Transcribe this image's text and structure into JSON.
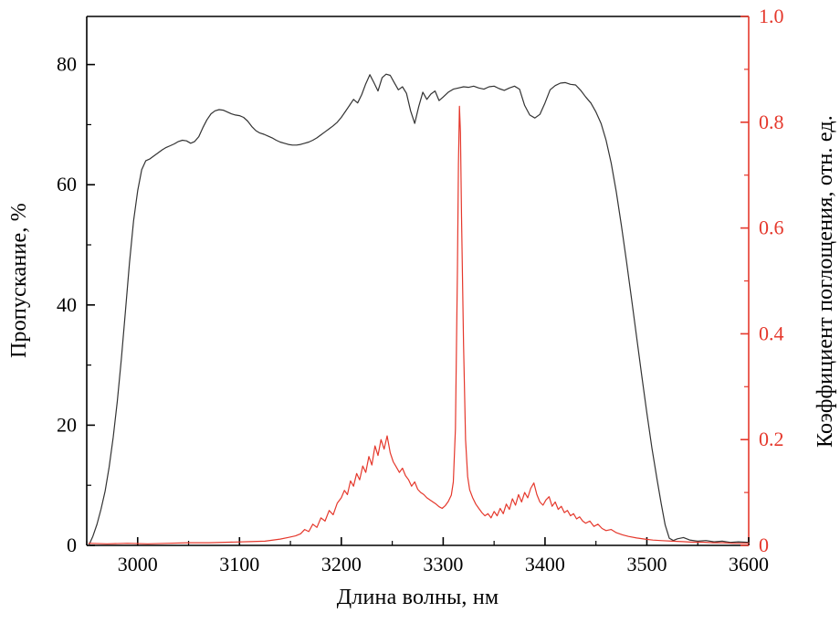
{
  "chart_data": {
    "type": "line",
    "title": "",
    "xlabel": "Длина волны, нм",
    "ylabel_left": "Пропускание, %",
    "ylabel_right": "Коэффициент поглощения, отн. ед.",
    "xlim": [
      2950,
      3600
    ],
    "ylim_left": [
      0,
      88
    ],
    "ylim_right": [
      0,
      1.0
    ],
    "grid": false,
    "legend": "none",
    "x_ticks": [
      3000,
      3100,
      3200,
      3300,
      3400,
      3500,
      3600
    ],
    "x_tick_labels": [
      "3000",
      "3100",
      "3200",
      "3300",
      "3400",
      "3500",
      "3600"
    ],
    "y_ticks_left": [
      0,
      20,
      40,
      60,
      80
    ],
    "y_tick_labels_left": [
      "0",
      "20",
      "40",
      "60",
      "80"
    ],
    "y_ticks_right": [
      0,
      0.2,
      0.4,
      0.6,
      0.8,
      1.0
    ],
    "y_tick_labels_right": [
      "0",
      "0.2",
      "0.4",
      "0.6",
      "0.8",
      "1.0"
    ],
    "colors": {
      "frame": "#000000",
      "left_series": "#333333",
      "right_series": "#e5382c",
      "right_axis": "#e5382c",
      "right_tick_text": "#e5382c"
    },
    "series": [
      {
        "name": "transmission",
        "axis": "left",
        "points": [
          [
            2952,
            0
          ],
          [
            2956,
            1.5
          ],
          [
            2960,
            3.5
          ],
          [
            2964,
            6
          ],
          [
            2968,
            9
          ],
          [
            2972,
            13
          ],
          [
            2976,
            18
          ],
          [
            2980,
            24
          ],
          [
            2984,
            31
          ],
          [
            2988,
            39
          ],
          [
            2992,
            47
          ],
          [
            2996,
            54
          ],
          [
            3000,
            59
          ],
          [
            3004,
            62.5
          ],
          [
            3008,
            64
          ],
          [
            3012,
            64.3
          ],
          [
            3016,
            64.8
          ],
          [
            3020,
            65.3
          ],
          [
            3024,
            65.8
          ],
          [
            3028,
            66.2
          ],
          [
            3032,
            66.5
          ],
          [
            3036,
            66.8
          ],
          [
            3040,
            67.2
          ],
          [
            3044,
            67.4
          ],
          [
            3048,
            67.3
          ],
          [
            3052,
            66.9
          ],
          [
            3056,
            67.2
          ],
          [
            3060,
            68
          ],
          [
            3064,
            69.5
          ],
          [
            3068,
            70.8
          ],
          [
            3072,
            71.8
          ],
          [
            3076,
            72.3
          ],
          [
            3080,
            72.5
          ],
          [
            3084,
            72.4
          ],
          [
            3088,
            72.1
          ],
          [
            3092,
            71.8
          ],
          [
            3096,
            71.6
          ],
          [
            3100,
            71.5
          ],
          [
            3104,
            71.2
          ],
          [
            3108,
            70.6
          ],
          [
            3112,
            69.7
          ],
          [
            3116,
            69
          ],
          [
            3120,
            68.6
          ],
          [
            3124,
            68.4
          ],
          [
            3128,
            68.1
          ],
          [
            3132,
            67.8
          ],
          [
            3136,
            67.4
          ],
          [
            3140,
            67.1
          ],
          [
            3144,
            66.9
          ],
          [
            3148,
            66.7
          ],
          [
            3152,
            66.6
          ],
          [
            3156,
            66.6
          ],
          [
            3160,
            66.7
          ],
          [
            3164,
            66.9
          ],
          [
            3168,
            67.1
          ],
          [
            3172,
            67.4
          ],
          [
            3176,
            67.8
          ],
          [
            3180,
            68.3
          ],
          [
            3184,
            68.8
          ],
          [
            3188,
            69.3
          ],
          [
            3192,
            69.8
          ],
          [
            3196,
            70.4
          ],
          [
            3200,
            71.2
          ],
          [
            3204,
            72.2
          ],
          [
            3208,
            73.2
          ],
          [
            3212,
            74.2
          ],
          [
            3216,
            73.6
          ],
          [
            3220,
            75
          ],
          [
            3224,
            76.8
          ],
          [
            3228,
            78.3
          ],
          [
            3232,
            77
          ],
          [
            3236,
            75.6
          ],
          [
            3240,
            77.8
          ],
          [
            3244,
            78.4
          ],
          [
            3248,
            78.2
          ],
          [
            3252,
            77
          ],
          [
            3256,
            75.8
          ],
          [
            3260,
            76.3
          ],
          [
            3264,
            75.2
          ],
          [
            3268,
            72.3
          ],
          [
            3272,
            70.2
          ],
          [
            3276,
            73
          ],
          [
            3280,
            75.4
          ],
          [
            3284,
            74.2
          ],
          [
            3288,
            75.1
          ],
          [
            3292,
            75.6
          ],
          [
            3296,
            74
          ],
          [
            3300,
            74.6
          ],
          [
            3305,
            75.4
          ],
          [
            3310,
            75.9
          ],
          [
            3315,
            76.1
          ],
          [
            3320,
            76.3
          ],
          [
            3325,
            76.2
          ],
          [
            3330,
            76.4
          ],
          [
            3335,
            76.1
          ],
          [
            3340,
            75.9
          ],
          [
            3345,
            76.3
          ],
          [
            3350,
            76.4
          ],
          [
            3355,
            76
          ],
          [
            3360,
            75.7
          ],
          [
            3365,
            76.1
          ],
          [
            3370,
            76.4
          ],
          [
            3375,
            75.9
          ],
          [
            3380,
            73.2
          ],
          [
            3385,
            71.6
          ],
          [
            3390,
            71.1
          ],
          [
            3395,
            71.7
          ],
          [
            3400,
            73.6
          ],
          [
            3405,
            75.8
          ],
          [
            3410,
            76.5
          ],
          [
            3415,
            76.9
          ],
          [
            3420,
            77
          ],
          [
            3425,
            76.7
          ],
          [
            3430,
            76.6
          ],
          [
            3435,
            75.7
          ],
          [
            3440,
            74.6
          ],
          [
            3445,
            73.6
          ],
          [
            3450,
            72.1
          ],
          [
            3455,
            70.2
          ],
          [
            3460,
            67.4
          ],
          [
            3465,
            63.6
          ],
          [
            3470,
            58.8
          ],
          [
            3475,
            53.2
          ],
          [
            3480,
            47.2
          ],
          [
            3485,
            41
          ],
          [
            3490,
            34.6
          ],
          [
            3495,
            28.2
          ],
          [
            3500,
            22
          ],
          [
            3505,
            16.2
          ],
          [
            3510,
            11
          ],
          [
            3514,
            7
          ],
          [
            3518,
            3.4
          ],
          [
            3522,
            1.2
          ],
          [
            3526,
            0.8
          ],
          [
            3530,
            1.1
          ],
          [
            3536,
            1.3
          ],
          [
            3542,
            0.9
          ],
          [
            3550,
            0.7
          ],
          [
            3558,
            0.8
          ],
          [
            3566,
            0.6
          ],
          [
            3574,
            0.7
          ],
          [
            3582,
            0.5
          ],
          [
            3590,
            0.6
          ],
          [
            3600,
            0.5
          ]
        ]
      },
      {
        "name": "absorption",
        "axis": "right",
        "points": [
          [
            2952,
            0.004
          ],
          [
            2970,
            0.003
          ],
          [
            2990,
            0.004
          ],
          [
            3010,
            0.003
          ],
          [
            3030,
            0.004
          ],
          [
            3050,
            0.005
          ],
          [
            3070,
            0.005
          ],
          [
            3090,
            0.006
          ],
          [
            3110,
            0.007
          ],
          [
            3125,
            0.008
          ],
          [
            3140,
            0.012
          ],
          [
            3148,
            0.015
          ],
          [
            3155,
            0.018
          ],
          [
            3160,
            0.022
          ],
          [
            3164,
            0.03
          ],
          [
            3168,
            0.026
          ],
          [
            3172,
            0.04
          ],
          [
            3176,
            0.034
          ],
          [
            3180,
            0.052
          ],
          [
            3184,
            0.046
          ],
          [
            3188,
            0.066
          ],
          [
            3192,
            0.058
          ],
          [
            3196,
            0.08
          ],
          [
            3200,
            0.09
          ],
          [
            3203,
            0.104
          ],
          [
            3206,
            0.096
          ],
          [
            3209,
            0.122
          ],
          [
            3212,
            0.112
          ],
          [
            3215,
            0.136
          ],
          [
            3218,
            0.124
          ],
          [
            3221,
            0.15
          ],
          [
            3224,
            0.138
          ],
          [
            3227,
            0.168
          ],
          [
            3230,
            0.152
          ],
          [
            3233,
            0.188
          ],
          [
            3236,
            0.17
          ],
          [
            3239,
            0.2
          ],
          [
            3242,
            0.182
          ],
          [
            3245,
            0.207
          ],
          [
            3248,
            0.175
          ],
          [
            3251,
            0.158
          ],
          [
            3254,
            0.148
          ],
          [
            3257,
            0.138
          ],
          [
            3260,
            0.146
          ],
          [
            3263,
            0.132
          ],
          [
            3266,
            0.124
          ],
          [
            3269,
            0.112
          ],
          [
            3272,
            0.12
          ],
          [
            3275,
            0.106
          ],
          [
            3278,
            0.1
          ],
          [
            3281,
            0.096
          ],
          [
            3284,
            0.09
          ],
          [
            3287,
            0.086
          ],
          [
            3290,
            0.082
          ],
          [
            3293,
            0.078
          ],
          [
            3296,
            0.073
          ],
          [
            3299,
            0.07
          ],
          [
            3302,
            0.075
          ],
          [
            3305,
            0.083
          ],
          [
            3308,
            0.095
          ],
          [
            3310,
            0.12
          ],
          [
            3312,
            0.22
          ],
          [
            3314,
            0.52
          ],
          [
            3315,
            0.72
          ],
          [
            3316,
            0.83
          ],
          [
            3317,
            0.78
          ],
          [
            3318,
            0.62
          ],
          [
            3320,
            0.38
          ],
          [
            3322,
            0.2
          ],
          [
            3324,
            0.13
          ],
          [
            3326,
            0.105
          ],
          [
            3329,
            0.09
          ],
          [
            3332,
            0.078
          ],
          [
            3335,
            0.07
          ],
          [
            3338,
            0.062
          ],
          [
            3341,
            0.056
          ],
          [
            3344,
            0.06
          ],
          [
            3347,
            0.052
          ],
          [
            3350,
            0.064
          ],
          [
            3353,
            0.056
          ],
          [
            3356,
            0.07
          ],
          [
            3359,
            0.06
          ],
          [
            3362,
            0.078
          ],
          [
            3365,
            0.068
          ],
          [
            3368,
            0.088
          ],
          [
            3371,
            0.076
          ],
          [
            3374,
            0.096
          ],
          [
            3377,
            0.082
          ],
          [
            3380,
            0.1
          ],
          [
            3383,
            0.09
          ],
          [
            3386,
            0.108
          ],
          [
            3389,
            0.118
          ],
          [
            3392,
            0.096
          ],
          [
            3395,
            0.082
          ],
          [
            3398,
            0.076
          ],
          [
            3401,
            0.086
          ],
          [
            3404,
            0.092
          ],
          [
            3407,
            0.074
          ],
          [
            3410,
            0.082
          ],
          [
            3413,
            0.068
          ],
          [
            3416,
            0.074
          ],
          [
            3419,
            0.062
          ],
          [
            3422,
            0.066
          ],
          [
            3425,
            0.056
          ],
          [
            3428,
            0.06
          ],
          [
            3431,
            0.05
          ],
          [
            3434,
            0.054
          ],
          [
            3437,
            0.046
          ],
          [
            3440,
            0.042
          ],
          [
            3444,
            0.046
          ],
          [
            3448,
            0.036
          ],
          [
            3452,
            0.04
          ],
          [
            3456,
            0.032
          ],
          [
            3460,
            0.028
          ],
          [
            3465,
            0.03
          ],
          [
            3470,
            0.024
          ],
          [
            3476,
            0.02
          ],
          [
            3482,
            0.017
          ],
          [
            3490,
            0.014
          ],
          [
            3498,
            0.012
          ],
          [
            3506,
            0.01
          ],
          [
            3515,
            0.009
          ],
          [
            3525,
            0.008
          ],
          [
            3535,
            0.007
          ],
          [
            3545,
            0.006
          ],
          [
            3555,
            0.006
          ],
          [
            3565,
            0.005
          ],
          [
            3575,
            0.005
          ],
          [
            3585,
            0.004
          ],
          [
            3600,
            0.004
          ]
        ]
      }
    ]
  }
}
